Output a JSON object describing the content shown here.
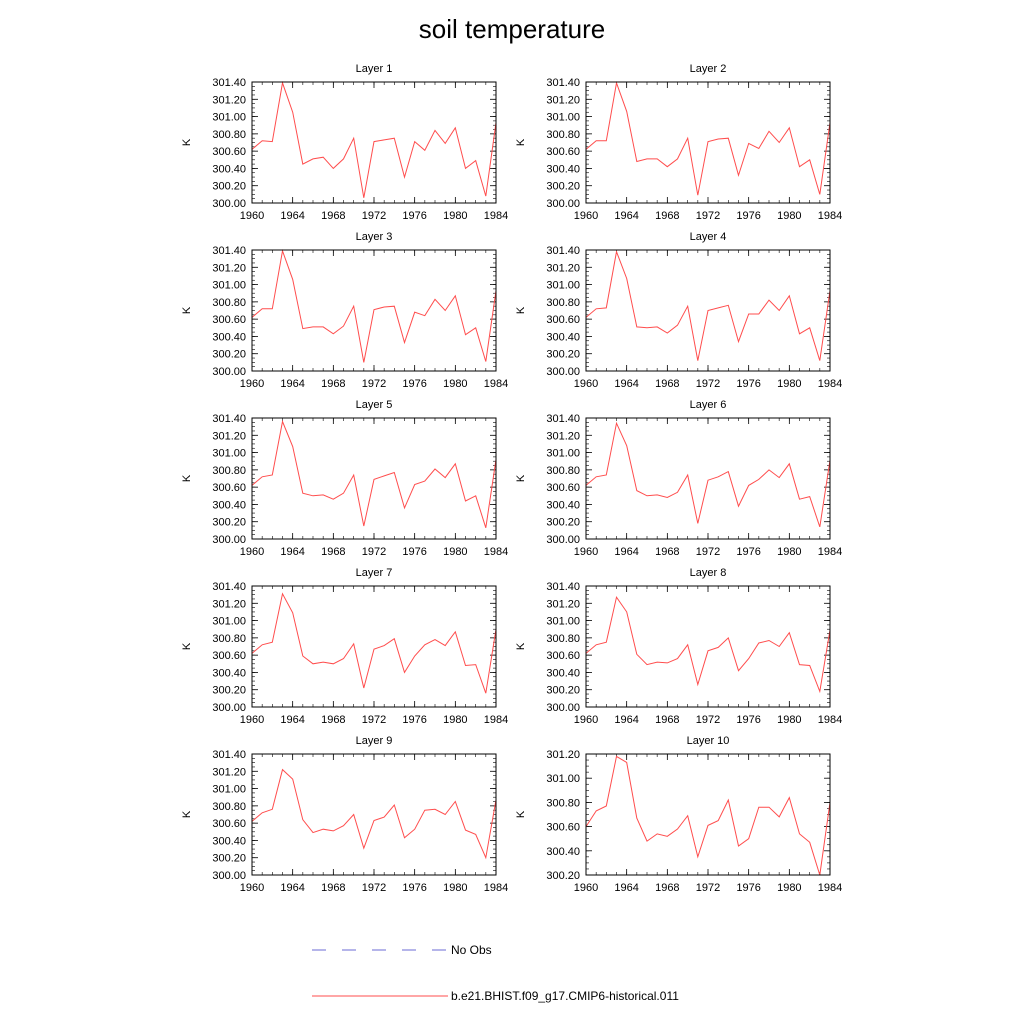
{
  "figure": {
    "title": "soil temperature",
    "legend": [
      {
        "label": "No Obs",
        "color": "#6b6bd6",
        "style": "dashed"
      },
      {
        "label": "b.e21.BHIST.f09_g17.CMIP6-historical.011",
        "color": "#ff4d4d",
        "style": "solid"
      }
    ]
  },
  "chart_data": [
    {
      "type": "line",
      "title": "Layer 1",
      "ylabel": "K",
      "xlim": [
        1960,
        1984
      ],
      "ylim": [
        300.0,
        301.4
      ],
      "xticks": [
        1960,
        1964,
        1968,
        1972,
        1976,
        1980,
        1984
      ],
      "yticks": [
        "300.00",
        "300.20",
        "300.40",
        "300.60",
        "300.80",
        "301.00",
        "301.20",
        "301.40"
      ],
      "series": [
        {
          "name": "b.e21.BHIST.f09_g17.CMIP6-historical.011",
          "x": [
            1960,
            1961,
            1962,
            1963,
            1964,
            1965,
            1966,
            1967,
            1968,
            1969,
            1970,
            1971,
            1972,
            1973,
            1974,
            1975,
            1976,
            1977,
            1978,
            1979,
            1980,
            1981,
            1982,
            1983,
            1984
          ],
          "values": [
            300.62,
            300.72,
            300.71,
            301.39,
            301.05,
            300.45,
            300.51,
            300.53,
            300.4,
            300.51,
            300.75,
            300.06,
            300.71,
            300.73,
            300.75,
            300.3,
            300.71,
            300.61,
            300.84,
            300.69,
            300.87,
            300.4,
            300.49,
            300.08,
            300.93
          ]
        }
      ]
    },
    {
      "type": "line",
      "title": "Layer 2",
      "ylabel": "K",
      "xlim": [
        1960,
        1984
      ],
      "ylim": [
        300.0,
        301.4
      ],
      "xticks": [
        1960,
        1964,
        1968,
        1972,
        1976,
        1980,
        1984
      ],
      "yticks": [
        "300.00",
        "300.20",
        "300.40",
        "300.60",
        "300.80",
        "301.00",
        "301.20",
        "301.40"
      ],
      "series": [
        {
          "name": "b.e21.BHIST.f09_g17.CMIP6-historical.011",
          "x": [
            1960,
            1961,
            1962,
            1963,
            1964,
            1965,
            1966,
            1967,
            1968,
            1969,
            1970,
            1971,
            1972,
            1973,
            1974,
            1975,
            1976,
            1977,
            1978,
            1979,
            1980,
            1981,
            1982,
            1983,
            1984
          ],
          "values": [
            300.62,
            300.72,
            300.72,
            301.39,
            301.06,
            300.48,
            300.51,
            300.51,
            300.42,
            300.51,
            300.75,
            300.09,
            300.71,
            300.74,
            300.75,
            300.32,
            300.69,
            300.63,
            300.83,
            300.7,
            300.87,
            300.42,
            300.5,
            300.1,
            300.93
          ]
        }
      ]
    },
    {
      "type": "line",
      "title": "Layer 3",
      "ylabel": "K",
      "xlim": [
        1960,
        1984
      ],
      "ylim": [
        300.0,
        301.4
      ],
      "xticks": [
        1960,
        1964,
        1968,
        1972,
        1976,
        1980,
        1984
      ],
      "yticks": [
        "300.00",
        "300.20",
        "300.40",
        "300.60",
        "300.80",
        "301.00",
        "301.20",
        "301.40"
      ],
      "series": [
        {
          "name": "b.e21.BHIST.f09_g17.CMIP6-historical.011",
          "x": [
            1960,
            1961,
            1962,
            1963,
            1964,
            1965,
            1966,
            1967,
            1968,
            1969,
            1970,
            1971,
            1972,
            1973,
            1974,
            1975,
            1976,
            1977,
            1978,
            1979,
            1980,
            1981,
            1982,
            1983,
            1984
          ],
          "values": [
            300.62,
            300.72,
            300.72,
            301.39,
            301.06,
            300.49,
            300.51,
            300.51,
            300.43,
            300.52,
            300.75,
            300.1,
            300.71,
            300.74,
            300.75,
            300.33,
            300.68,
            300.64,
            300.83,
            300.7,
            300.87,
            300.42,
            300.5,
            300.11,
            300.93
          ]
        }
      ]
    },
    {
      "type": "line",
      "title": "Layer 4",
      "ylabel": "K",
      "xlim": [
        1960,
        1984
      ],
      "ylim": [
        300.0,
        301.4
      ],
      "xticks": [
        1960,
        1964,
        1968,
        1972,
        1976,
        1980,
        1984
      ],
      "yticks": [
        "300.00",
        "300.20",
        "300.40",
        "300.60",
        "300.80",
        "301.00",
        "301.20",
        "301.40"
      ],
      "series": [
        {
          "name": "b.e21.BHIST.f09_g17.CMIP6-historical.011",
          "x": [
            1960,
            1961,
            1962,
            1963,
            1964,
            1965,
            1966,
            1967,
            1968,
            1969,
            1970,
            1971,
            1972,
            1973,
            1974,
            1975,
            1976,
            1977,
            1978,
            1979,
            1980,
            1981,
            1982,
            1983,
            1984
          ],
          "values": [
            300.62,
            300.72,
            300.73,
            301.38,
            301.07,
            300.51,
            300.5,
            300.51,
            300.44,
            300.53,
            300.75,
            300.12,
            300.7,
            300.73,
            300.76,
            300.34,
            300.66,
            300.66,
            300.82,
            300.7,
            300.87,
            300.43,
            300.5,
            300.12,
            300.93
          ]
        }
      ]
    },
    {
      "type": "line",
      "title": "Layer 5",
      "ylabel": "K",
      "xlim": [
        1960,
        1984
      ],
      "ylim": [
        300.0,
        301.4
      ],
      "xticks": [
        1960,
        1964,
        1968,
        1972,
        1976,
        1980,
        1984
      ],
      "yticks": [
        "300.00",
        "300.20",
        "300.40",
        "300.60",
        "300.80",
        "301.00",
        "301.20",
        "301.40"
      ],
      "series": [
        {
          "name": "b.e21.BHIST.f09_g17.CMIP6-historical.011",
          "x": [
            1960,
            1961,
            1962,
            1963,
            1964,
            1965,
            1966,
            1967,
            1968,
            1969,
            1970,
            1971,
            1972,
            1973,
            1974,
            1975,
            1976,
            1977,
            1978,
            1979,
            1980,
            1981,
            1982,
            1983,
            1984
          ],
          "values": [
            300.62,
            300.72,
            300.74,
            301.36,
            301.07,
            300.53,
            300.5,
            300.51,
            300.46,
            300.53,
            300.74,
            300.15,
            300.69,
            300.73,
            300.77,
            300.36,
            300.63,
            300.67,
            300.81,
            300.71,
            300.87,
            300.44,
            300.5,
            300.13,
            300.92
          ]
        }
      ]
    },
    {
      "type": "line",
      "title": "Layer 6",
      "ylabel": "K",
      "xlim": [
        1960,
        1984
      ],
      "ylim": [
        300.0,
        301.4
      ],
      "xticks": [
        1960,
        1964,
        1968,
        1972,
        1976,
        1980,
        1984
      ],
      "yticks": [
        "300.00",
        "300.20",
        "300.40",
        "300.60",
        "300.80",
        "301.00",
        "301.20",
        "301.40"
      ],
      "series": [
        {
          "name": "b.e21.BHIST.f09_g17.CMIP6-historical.011",
          "x": [
            1960,
            1961,
            1962,
            1963,
            1964,
            1965,
            1966,
            1967,
            1968,
            1969,
            1970,
            1971,
            1972,
            1973,
            1974,
            1975,
            1976,
            1977,
            1978,
            1979,
            1980,
            1981,
            1982,
            1983,
            1984
          ],
          "values": [
            300.62,
            300.72,
            300.74,
            301.34,
            301.08,
            300.56,
            300.5,
            300.51,
            300.48,
            300.54,
            300.74,
            300.18,
            300.68,
            300.72,
            300.78,
            300.38,
            300.62,
            300.69,
            300.8,
            300.71,
            300.87,
            300.46,
            300.49,
            300.14,
            300.91
          ]
        }
      ]
    },
    {
      "type": "line",
      "title": "Layer 7",
      "ylabel": "K",
      "xlim": [
        1960,
        1984
      ],
      "ylim": [
        300.0,
        301.4
      ],
      "xticks": [
        1960,
        1964,
        1968,
        1972,
        1976,
        1980,
        1984
      ],
      "yticks": [
        "300.00",
        "300.20",
        "300.40",
        "300.60",
        "300.80",
        "301.00",
        "301.20",
        "301.40"
      ],
      "series": [
        {
          "name": "b.e21.BHIST.f09_g17.CMIP6-historical.011",
          "x": [
            1960,
            1961,
            1962,
            1963,
            1964,
            1965,
            1966,
            1967,
            1968,
            1969,
            1970,
            1971,
            1972,
            1973,
            1974,
            1975,
            1976,
            1977,
            1978,
            1979,
            1980,
            1981,
            1982,
            1983,
            1984
          ],
          "values": [
            300.62,
            300.72,
            300.75,
            301.31,
            301.09,
            300.59,
            300.5,
            300.52,
            300.5,
            300.56,
            300.73,
            300.22,
            300.67,
            300.71,
            300.79,
            300.4,
            300.59,
            300.72,
            300.78,
            300.71,
            300.87,
            300.48,
            300.49,
            300.16,
            300.9
          ]
        }
      ]
    },
    {
      "type": "line",
      "title": "Layer 8",
      "ylabel": "K",
      "xlim": [
        1960,
        1984
      ],
      "ylim": [
        300.0,
        301.4
      ],
      "xticks": [
        1960,
        1964,
        1968,
        1972,
        1976,
        1980,
        1984
      ],
      "yticks": [
        "300.00",
        "300.20",
        "300.40",
        "300.60",
        "300.80",
        "301.00",
        "301.20",
        "301.40"
      ],
      "series": [
        {
          "name": "b.e21.BHIST.f09_g17.CMIP6-historical.011",
          "x": [
            1960,
            1961,
            1962,
            1963,
            1964,
            1965,
            1966,
            1967,
            1968,
            1969,
            1970,
            1971,
            1972,
            1973,
            1974,
            1975,
            1976,
            1977,
            1978,
            1979,
            1980,
            1981,
            1982,
            1983,
            1984
          ],
          "values": [
            300.62,
            300.72,
            300.75,
            301.27,
            301.1,
            300.61,
            300.49,
            300.52,
            300.51,
            300.56,
            300.72,
            300.26,
            300.65,
            300.69,
            300.8,
            300.42,
            300.56,
            300.74,
            300.77,
            300.7,
            300.86,
            300.49,
            300.48,
            300.18,
            300.89
          ]
        }
      ]
    },
    {
      "type": "line",
      "title": "Layer 9",
      "ylabel": "K",
      "xlim": [
        1960,
        1984
      ],
      "ylim": [
        300.0,
        301.4
      ],
      "xticks": [
        1960,
        1964,
        1968,
        1972,
        1976,
        1980,
        1984
      ],
      "yticks": [
        "300.00",
        "300.20",
        "300.40",
        "300.60",
        "300.80",
        "301.00",
        "301.20",
        "301.40"
      ],
      "series": [
        {
          "name": "b.e21.BHIST.f09_g17.CMIP6-historical.011",
          "x": [
            1960,
            1961,
            1962,
            1963,
            1964,
            1965,
            1966,
            1967,
            1968,
            1969,
            1970,
            1971,
            1972,
            1973,
            1974,
            1975,
            1976,
            1977,
            1978,
            1979,
            1980,
            1981,
            1982,
            1983,
            1984
          ],
          "values": [
            300.62,
            300.72,
            300.76,
            301.22,
            301.11,
            300.64,
            300.49,
            300.53,
            300.51,
            300.57,
            300.7,
            300.31,
            300.63,
            300.67,
            300.81,
            300.43,
            300.53,
            300.75,
            300.76,
            300.7,
            300.85,
            300.52,
            300.47,
            300.2,
            300.87
          ]
        }
      ]
    },
    {
      "type": "line",
      "title": "Layer 10",
      "ylabel": "K",
      "xlim": [
        1960,
        1984
      ],
      "ylim": [
        300.2,
        301.2
      ],
      "xticks": [
        1960,
        1964,
        1968,
        1972,
        1976,
        1980,
        1984
      ],
      "yticks": [
        "300.20",
        "300.40",
        "300.60",
        "300.80",
        "301.00",
        "301.20"
      ],
      "series": [
        {
          "name": "b.e21.BHIST.f09_g17.CMIP6-historical.011",
          "x": [
            1960,
            1961,
            1962,
            1963,
            1964,
            1965,
            1966,
            1967,
            1968,
            1969,
            1970,
            1971,
            1972,
            1973,
            1974,
            1975,
            1976,
            1977,
            1978,
            1979,
            1980,
            1981,
            1982,
            1983,
            1984
          ],
          "values": [
            300.6,
            300.73,
            300.77,
            301.18,
            301.13,
            300.67,
            300.48,
            300.54,
            300.52,
            300.58,
            300.69,
            300.35,
            300.61,
            300.65,
            300.82,
            300.44,
            300.5,
            300.76,
            300.76,
            300.68,
            300.84,
            300.54,
            300.47,
            300.2,
            300.8
          ]
        }
      ]
    }
  ]
}
